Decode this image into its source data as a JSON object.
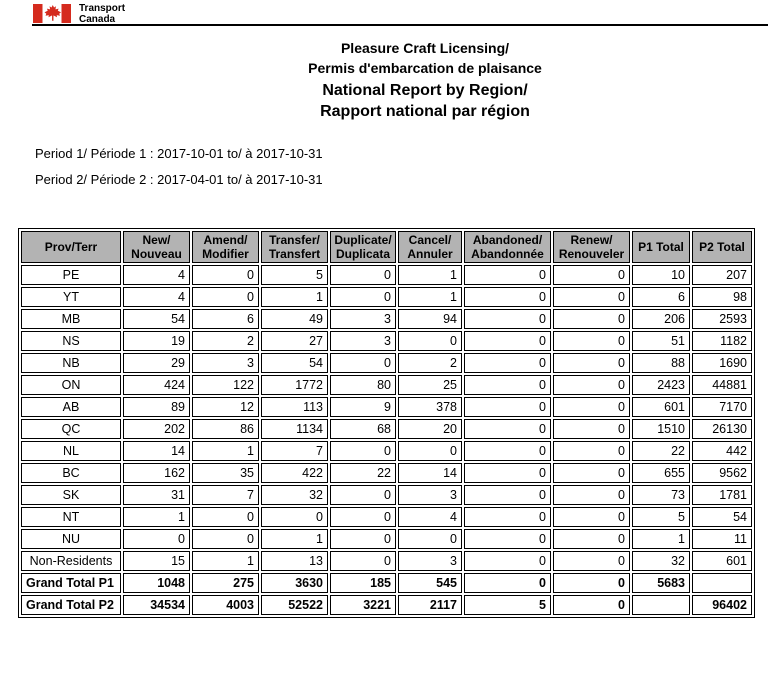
{
  "header": {
    "dept_line1": "Transport",
    "dept_line2": "Canada",
    "flag_red": "#d52b1e"
  },
  "title": {
    "line1": "Pleasure Craft Licensing/",
    "line2": "Permis d'embarcation de plaisance",
    "line3": "National Report by Region/",
    "line4": "Rapport national par région"
  },
  "periods": {
    "period1": "Period 1/ Période 1 : 2017-10-01 to/ à 2017-10-31",
    "period2": "Period 2/ Période 2 : 2017-04-01 to/ à 2017-10-31"
  },
  "table": {
    "header_bg": "#b3b3b3",
    "columns": [
      "Prov/Terr",
      "New/\nNouveau",
      "Amend/\nModifier",
      "Transfer/\nTransfert",
      "Duplicate/\nDuplicata",
      "Cancel/\nAnnuler",
      "Abandoned/\nAbandonnée",
      "Renew/\nRenouveler",
      "P1 Total",
      "P2 Total"
    ],
    "rows": [
      {
        "label": "PE",
        "total": false,
        "values": [
          "4",
          "0",
          "5",
          "0",
          "1",
          "0",
          "0",
          "10",
          "207"
        ]
      },
      {
        "label": "YT",
        "total": false,
        "values": [
          "4",
          "0",
          "1",
          "0",
          "1",
          "0",
          "0",
          "6",
          "98"
        ]
      },
      {
        "label": "MB",
        "total": false,
        "values": [
          "54",
          "6",
          "49",
          "3",
          "94",
          "0",
          "0",
          "206",
          "2593"
        ]
      },
      {
        "label": "NS",
        "total": false,
        "values": [
          "19",
          "2",
          "27",
          "3",
          "0",
          "0",
          "0",
          "51",
          "1182"
        ]
      },
      {
        "label": "NB",
        "total": false,
        "values": [
          "29",
          "3",
          "54",
          "0",
          "2",
          "0",
          "0",
          "88",
          "1690"
        ]
      },
      {
        "label": "ON",
        "total": false,
        "values": [
          "424",
          "122",
          "1772",
          "80",
          "25",
          "0",
          "0",
          "2423",
          "44881"
        ]
      },
      {
        "label": "AB",
        "total": false,
        "values": [
          "89",
          "12",
          "113",
          "9",
          "378",
          "0",
          "0",
          "601",
          "7170"
        ]
      },
      {
        "label": "QC",
        "total": false,
        "values": [
          "202",
          "86",
          "1134",
          "68",
          "20",
          "0",
          "0",
          "1510",
          "26130"
        ]
      },
      {
        "label": "NL",
        "total": false,
        "values": [
          "14",
          "1",
          "7",
          "0",
          "0",
          "0",
          "0",
          "22",
          "442"
        ]
      },
      {
        "label": "BC",
        "total": false,
        "values": [
          "162",
          "35",
          "422",
          "22",
          "14",
          "0",
          "0",
          "655",
          "9562"
        ]
      },
      {
        "label": "SK",
        "total": false,
        "values": [
          "31",
          "7",
          "32",
          "0",
          "3",
          "0",
          "0",
          "73",
          "1781"
        ]
      },
      {
        "label": "NT",
        "total": false,
        "values": [
          "1",
          "0",
          "0",
          "0",
          "4",
          "0",
          "0",
          "5",
          "54"
        ]
      },
      {
        "label": "NU",
        "total": false,
        "values": [
          "0",
          "0",
          "1",
          "0",
          "0",
          "0",
          "0",
          "1",
          "11"
        ]
      },
      {
        "label": "Non-Residents",
        "total": false,
        "values": [
          "15",
          "1",
          "13",
          "0",
          "3",
          "0",
          "0",
          "32",
          "601"
        ]
      },
      {
        "label": "Grand Total P1",
        "total": true,
        "values": [
          "1048",
          "275",
          "3630",
          "185",
          "545",
          "0",
          "0",
          "5683",
          ""
        ]
      },
      {
        "label": "Grand Total P2",
        "total": true,
        "values": [
          "34534",
          "4003",
          "52522",
          "3221",
          "2117",
          "5",
          "0",
          "",
          "96402"
        ]
      }
    ]
  }
}
